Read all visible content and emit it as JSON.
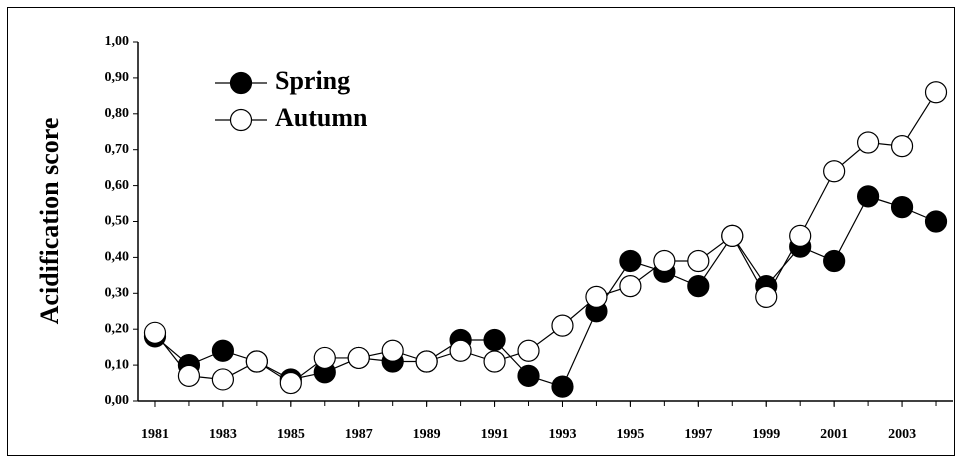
{
  "chart_data": {
    "type": "line",
    "y_label": "Acidification score",
    "x": [
      1981,
      1982,
      1983,
      1984,
      1985,
      1986,
      1987,
      1988,
      1989,
      1990,
      1991,
      1992,
      1993,
      1994,
      1995,
      1996,
      1997,
      1998,
      1999,
      2000,
      2001,
      2002,
      2003,
      2004
    ],
    "xlim": [
      1980.5,
      2004.5
    ],
    "xticks": [
      1981,
      1983,
      1985,
      1987,
      1989,
      1991,
      1993,
      1995,
      1997,
      1999,
      2001,
      2003
    ],
    "ylim": [
      0,
      1
    ],
    "yticks": [
      {
        "value": 0,
        "label": "0,00"
      },
      {
        "value": 0.1,
        "label": "0,10"
      },
      {
        "value": 0.2,
        "label": "0,20"
      },
      {
        "value": 0.3,
        "label": "0,30"
      },
      {
        "value": 0.4,
        "label": "0,40"
      },
      {
        "value": 0.5,
        "label": "0,50"
      },
      {
        "value": 0.6,
        "label": "0,60"
      },
      {
        "value": 0.7,
        "label": "0,70"
      },
      {
        "value": 0.8,
        "label": "0,80"
      },
      {
        "value": 0.9,
        "label": "0,90"
      },
      {
        "value": 1,
        "label": "1,00"
      }
    ],
    "legend": "upper-left",
    "series": [
      {
        "name": "Spring",
        "color": "#000000",
        "marker_fill": "#000000",
        "values": [
          0.18,
          0.1,
          0.14,
          0.11,
          0.06,
          0.08,
          0.12,
          0.11,
          0.11,
          0.17,
          0.17,
          0.07,
          0.04,
          0.25,
          0.39,
          0.36,
          0.32,
          0.46,
          0.32,
          0.43,
          0.39,
          0.57,
          0.54,
          0.5
        ]
      },
      {
        "name": "Autumn",
        "color": "#000000",
        "marker_fill": "#ffffff",
        "values": [
          0.19,
          0.07,
          0.06,
          0.11,
          0.05,
          0.12,
          0.12,
          0.14,
          0.11,
          0.14,
          0.11,
          0.14,
          0.21,
          0.29,
          0.32,
          0.39,
          0.39,
          0.46,
          0.29,
          0.46,
          0.64,
          0.72,
          0.71,
          0.86
        ]
      }
    ]
  }
}
